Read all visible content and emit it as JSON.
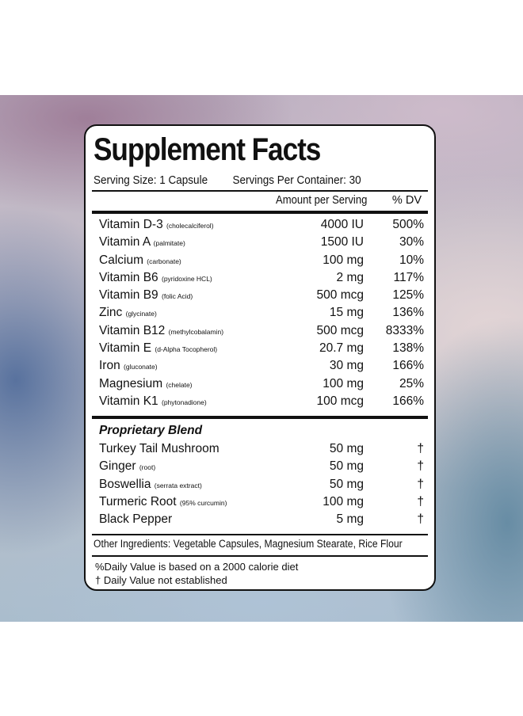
{
  "title": "Supplement Facts",
  "serving_size": "Serving Size: 1 Capsule",
  "servings_per_container": "Servings Per Container: 30",
  "headers": {
    "amount": "Amount per Serving",
    "dv": "% DV"
  },
  "nutrients": [
    {
      "name": "Vitamin D-3",
      "sub": "(cholecalciferol)",
      "amount": "4000 IU",
      "dv": "500%"
    },
    {
      "name": "Vitamin A",
      "sub": "(palmitate)",
      "amount": "1500 IU",
      "dv": "30%"
    },
    {
      "name": "Calcium",
      "sub": "(carbonate)",
      "amount": "100 mg",
      "dv": "10%"
    },
    {
      "name": "Vitamin B6",
      "sub": "(pyridoxine HCL)",
      "amount": "2 mg",
      "dv": "117%"
    },
    {
      "name": "Vitamin B9",
      "sub": "(folic Acid)",
      "amount": "500 mcg",
      "dv": "125%"
    },
    {
      "name": "Zinc",
      "sub": "(glycinate)",
      "amount": "15 mg",
      "dv": "136%"
    },
    {
      "name": "Vitamin B12",
      "sub": "(methylcobalamin)",
      "amount": "500 mcg",
      "dv": "8333%"
    },
    {
      "name": "Vitamin E",
      "sub": "(d-Alpha Tocopherol)",
      "amount": "20.7 mg",
      "dv": "138%"
    },
    {
      "name": "Iron",
      "sub": "(gluconate)",
      "amount": "30 mg",
      "dv": "166%"
    },
    {
      "name": "Magnesium",
      "sub": "(chelate)",
      "amount": "100 mg",
      "dv": "25%"
    },
    {
      "name": "Vitamin K1",
      "sub": "(phytonadione)",
      "amount": "100 mcg",
      "dv": "166%"
    }
  ],
  "blend": {
    "title": "Proprietary Blend",
    "items": [
      {
        "name": "Turkey Tail Mushroom",
        "sub": "",
        "amount": "50 mg",
        "dv": "†"
      },
      {
        "name": "Ginger",
        "sub": "(root)",
        "amount": "50 mg",
        "dv": "†"
      },
      {
        "name": "Boswellia",
        "sub": "(serrata extract)",
        "amount": "50 mg",
        "dv": "†"
      },
      {
        "name": "Turmeric Root",
        "sub": "(95% curcumin)",
        "amount": "100 mg",
        "dv": "†"
      },
      {
        "name": "Black Pepper",
        "sub": "",
        "amount": "5 mg",
        "dv": "†"
      }
    ]
  },
  "other_ingredients": "Other Ingredients:  Vegetable Capsules, Magnesium Stearate, Rice Flour",
  "footnotes": [
    "%Daily Value is based on a 2000 calorie diet",
    "† Daily Value not established"
  ]
}
